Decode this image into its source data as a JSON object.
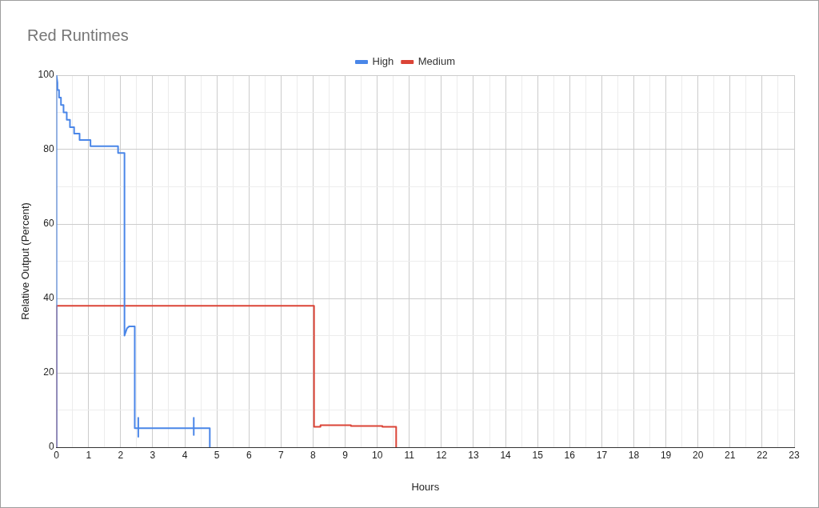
{
  "chart_data": {
    "type": "line",
    "title": "Red Runtimes",
    "xlabel": "Hours",
    "ylabel": "Relative Output (Percent)",
    "xlim": [
      0,
      23
    ],
    "xticks": [
      0,
      {
        "value": 0.5,
        "label": null
      },
      1,
      {
        "value": 1.5,
        "label": null
      },
      2,
      {
        "value": 2.5,
        "label": null
      },
      3,
      {
        "value": 3.5,
        "label": null
      },
      4,
      {
        "value": 4.5,
        "label": null
      },
      5,
      {
        "value": 5.5,
        "label": null
      },
      6,
      {
        "value": 6.5,
        "label": null
      },
      7,
      {
        "value": 7.5,
        "label": null
      },
      8,
      {
        "value": 8.5,
        "label": null
      },
      9,
      {
        "value": 9.5,
        "label": null
      },
      10,
      {
        "value": 10.5,
        "label": null
      },
      11,
      {
        "value": 11.5,
        "label": null
      },
      12,
      {
        "value": 12.5,
        "label": null
      },
      13,
      {
        "value": 13.5,
        "label": null
      },
      14,
      {
        "value": 14.5,
        "label": null
      },
      15,
      {
        "value": 15.5,
        "label": null
      },
      16,
      {
        "value": 16.5,
        "label": null
      },
      17,
      {
        "value": 17.5,
        "label": null
      },
      18,
      {
        "value": 18.5,
        "label": null
      },
      19,
      {
        "value": 19.5,
        "label": null
      },
      20,
      {
        "value": 20.5,
        "label": null
      },
      21,
      {
        "value": 21.5,
        "label": null
      },
      22,
      {
        "value": 22.5,
        "label": null
      },
      23
    ],
    "ylim": [
      0,
      100
    ],
    "yticks": [
      0,
      {
        "value": 10,
        "label": null
      },
      20,
      {
        "value": 30,
        "label": null
      },
      40,
      {
        "value": 50,
        "label": null
      },
      60,
      {
        "value": 70,
        "label": null
      },
      80,
      {
        "value": 90,
        "label": null
      },
      100
    ],
    "grid": true,
    "legend": "top",
    "marker": "none",
    "line_style": "solid",
    "series": [
      {
        "name": "High",
        "color": "#4a86e8",
        "x": [
          0,
          0,
          0.03,
          0.03,
          0.08,
          0.08,
          0.14,
          0.14,
          0.22,
          0.22,
          0.32,
          0.32,
          0.42,
          0.42,
          0.55,
          0.55,
          0.72,
          0.72,
          1.06,
          1.06,
          1.92,
          1.92,
          2.12,
          2.12,
          2.2,
          2.27,
          2.44,
          2.44,
          2.55,
          2.55,
          2.55,
          2.55,
          4.28,
          4.28,
          4.28,
          4.28,
          4.78,
          4.78
        ],
        "values": [
          0,
          100,
          98,
          96,
          96,
          94,
          94,
          92,
          92,
          90,
          90,
          88,
          88,
          86,
          86,
          84.3,
          84.3,
          82.6,
          82.6,
          80.9,
          80.9,
          79.1,
          79.1,
          30,
          32,
          32.5,
          32.5,
          5.1,
          5.1,
          7.9,
          2.8,
          5.1,
          5.1,
          7.9,
          3.3,
          5.1,
          5.1,
          0
        ]
      },
      {
        "name": "Medium",
        "color": "#db4437",
        "x": [
          0,
          0,
          8.03,
          8.03,
          8.23,
          8.23,
          9.18,
          9.18,
          10.16,
          10.16,
          10.59,
          10.59
        ],
        "values": [
          0,
          38,
          38,
          5.5,
          5.5,
          5.9,
          5.9,
          5.7,
          5.7,
          5.5,
          5.5,
          0
        ]
      }
    ]
  }
}
